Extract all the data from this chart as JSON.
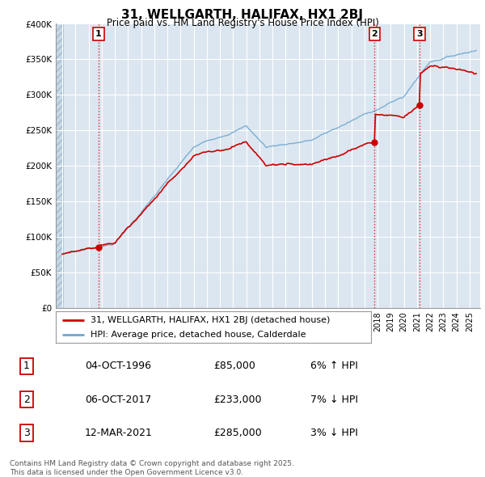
{
  "title": "31, WELLGARTH, HALIFAX, HX1 2BJ",
  "subtitle": "Price paid vs. HM Land Registry's House Price Index (HPI)",
  "background_color": "#ffffff",
  "plot_bg_color": "#dce6f0",
  "grid_color": "#ffffff",
  "sale_color": "#cc0000",
  "hpi_color": "#6fa8d0",
  "ylim": [
    0,
    400000
  ],
  "yticks": [
    0,
    50000,
    100000,
    150000,
    200000,
    250000,
    300000,
    350000,
    400000
  ],
  "ytick_labels": [
    "£0",
    "£50K",
    "£100K",
    "£150K",
    "£200K",
    "£250K",
    "£300K",
    "£350K",
    "£400K"
  ],
  "xlim_start": 1993.5,
  "xlim_end": 2025.8,
  "sales": [
    {
      "date": 1996.76,
      "price": 85000,
      "label": "1"
    },
    {
      "date": 2017.76,
      "price": 233000,
      "label": "2"
    },
    {
      "date": 2021.19,
      "price": 285000,
      "label": "3"
    }
  ],
  "table_rows": [
    {
      "num": "1",
      "date": "04-OCT-1996",
      "price": "£85,000",
      "rel": "6% ↑ HPI"
    },
    {
      "num": "2",
      "date": "06-OCT-2017",
      "price": "£233,000",
      "rel": "7% ↓ HPI"
    },
    {
      "num": "3",
      "date": "12-MAR-2021",
      "price": "£285,000",
      "rel": "3% ↓ HPI"
    }
  ],
  "footer": "Contains HM Land Registry data © Crown copyright and database right 2025.\nThis data is licensed under the Open Government Licence v3.0.",
  "legend_sale": "31, WELLGARTH, HALIFAX, HX1 2BJ (detached house)",
  "legend_hpi": "HPI: Average price, detached house, Calderdale"
}
